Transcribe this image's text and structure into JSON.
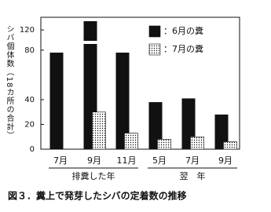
{
  "chart_data": {
    "type": "bar",
    "y_label": "シバ個体数（18カ所の合計）",
    "categories": [
      "7月",
      "9月",
      "11月",
      "5月",
      "7月",
      "9月"
    ],
    "group_labels": [
      "排糞した年",
      "翌　年"
    ],
    "series": [
      {
        "name": "：6月の糞",
        "color": "#111111",
        "values": [
          78,
          128,
          78,
          38,
          41,
          28
        ]
      },
      {
        "name": "：7月の糞",
        "color": "dots",
        "values": [
          null,
          30,
          13,
          8,
          10,
          6
        ]
      }
    ],
    "ylim": [
      0,
      128
    ],
    "yticks": [
      0,
      20,
      40,
      80,
      120
    ],
    "axis_break": [
      85,
      110
    ],
    "caption": "図３．糞上で発芽したシバの定着数の推移"
  }
}
